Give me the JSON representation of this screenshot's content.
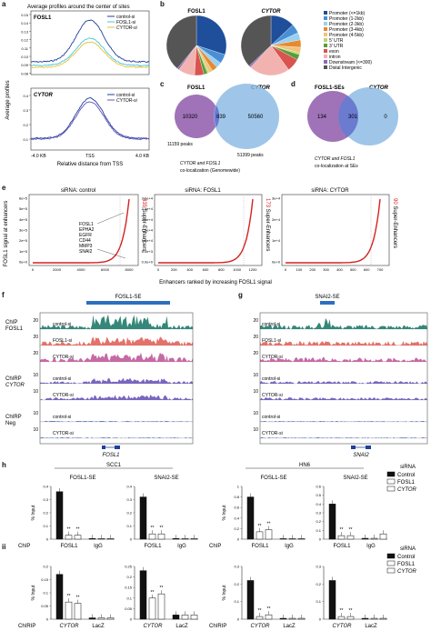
{
  "panels": {
    "a": "a",
    "b": "b",
    "c": "c",
    "d": "d",
    "e": "e",
    "f": "f",
    "g": "g",
    "h_i": "h",
    "h_ii": "ii"
  },
  "panel_a": {
    "title": "Average profiles around the center of sites",
    "ylabel": "Average profiles",
    "xlabel": "Relative distance from TSS",
    "top": {
      "name": "FOSL1",
      "legend": [
        "control-si",
        "FOSL1-si",
        "CYTOR-si"
      ],
      "yticks": [
        "0.15",
        "0.14",
        "0.13",
        "0.12",
        "0.11",
        "0.10",
        "0.09",
        "0.08"
      ]
    },
    "bottom": {
      "name": "CYTOR",
      "legend": [
        "control-si",
        "CYTOR-si"
      ],
      "yticks": [
        "0.4",
        "0.3",
        "0.2",
        "0.1"
      ]
    },
    "xticks": [
      "-4.0 KB",
      "TSS",
      "4.0 KB"
    ],
    "colors": [
      "#1f3f9a",
      "#47c7d8",
      "#e8c23a"
    ]
  },
  "panel_b": {
    "pies": [
      {
        "title": "FOSL1"
      },
      {
        "title": "CYTOR"
      }
    ],
    "legend": [
      {
        "label": "Promoter (<=1kb)",
        "color": "#1f4e9a"
      },
      {
        "label": "Promoter (1-2kb)",
        "color": "#4a8fd6"
      },
      {
        "label": "Promoter (2-3kb)",
        "color": "#9ad0f0"
      },
      {
        "label": "Promoter (3-4kb)",
        "color": "#e48b2f"
      },
      {
        "label": "Promoter (4-5kb)",
        "color": "#f3c27a"
      },
      {
        "label": "5' UTR",
        "color": "#b7d96a"
      },
      {
        "label": "3' UTR",
        "color": "#5a9e3a"
      },
      {
        "label": "exon",
        "color": "#d9534f"
      },
      {
        "label": "intron",
        "color": "#f2b2b0"
      },
      {
        "label": "Downstream (<=300)",
        "color": "#8a6ab8"
      },
      {
        "label": "Distal Intergenic",
        "color": "#555555"
      }
    ]
  },
  "panel_c": {
    "left_title": "FOSL1",
    "right_title": "CYTOR",
    "left_only": "10320",
    "overlap": "839",
    "right_only": "50560",
    "left_peaks": "11159 peaks",
    "right_peaks": "51399 peaks",
    "caption_1": "CYTOR and FOSL1",
    "caption_2": "co-localization (Genomewide)"
  },
  "panel_d": {
    "left_title": "FOSL1-SEs",
    "right_title": "CYTOR",
    "left_only": "134",
    "overlap": "301",
    "right_only": "0",
    "caption_1": "CYTOR and FOSL1",
    "caption_2": "co-localization at SEs"
  },
  "panel_e": {
    "ylabel": "FOSL1 signal at enhancers",
    "xlabel": "Enhancers ranked by increasing FOSL1 signal",
    "plots": [
      {
        "title": "siRNA: control",
        "count": "435",
        "se_label": "Super-Enhancers",
        "genes": [
          "FOSL1",
          "EPHA2",
          "EGFR",
          "CD44",
          "MMP3",
          "SNAI2"
        ],
        "yticks": [
          "6e+5",
          "5e+5",
          "4e+5",
          "3e+5",
          "2e+5",
          "1e+5",
          "0e+0"
        ],
        "xticks": [
          "0",
          "2000",
          "4000",
          "6000",
          "8000"
        ]
      },
      {
        "title": "siRNA: FOSL1",
        "count": "173",
        "se_label": "Super-Enhancers",
        "yticks": [
          "3.0e+4",
          "2.5e+4",
          "2.0e+4",
          "1.5e+4",
          "1.0e+4",
          "5.0e+3",
          "0.0e+0"
        ],
        "xticks": [
          "0",
          "200",
          "400",
          "600",
          "800",
          "1000",
          "1200"
        ]
      },
      {
        "title": "siRNA: CYTOR",
        "count": "90",
        "se_label": "Super-Enhancers",
        "yticks": [
          "3e+4",
          "2e+4",
          "1e+4",
          "0e+0"
        ],
        "xticks": [
          "0",
          "100",
          "200",
          "300",
          "400",
          "500",
          "600",
          "700"
        ]
      }
    ]
  },
  "panel_f": {
    "se": "FOSL1-SE",
    "gene": "FOSL1",
    "groups": [
      "ChIP\nFOSL1",
      "ChIRP\nCYTOR",
      "ChIRP\nNeg"
    ],
    "tracks": [
      {
        "label": "control-si",
        "scale": "20",
        "color": "#1e7a6a"
      },
      {
        "label": "FOSL1-si",
        "scale": "20",
        "color": "#e0635a"
      },
      {
        "label": "CYTOR-si",
        "scale": "20",
        "color": "#c05a9a"
      },
      {
        "label": "control-si",
        "scale": "10",
        "color": "#6a55b8"
      },
      {
        "label": "CYTOR-si",
        "scale": "10",
        "color": "#6a55b8"
      },
      {
        "label": "control-si",
        "scale": "10",
        "color": "#1f3f9a"
      },
      {
        "label": "CYTOR-si",
        "scale": "10",
        "color": "#1f3f9a"
      }
    ]
  },
  "panel_g": {
    "se": "SNAI2-SE",
    "gene": "SNAI2",
    "tracks_scale": [
      "20",
      "20",
      "20",
      "10",
      "10",
      "10",
      "10"
    ]
  },
  "panel_h": {
    "cell_1": "SCC1",
    "cell_2": "HN6",
    "sirna_title": "siRNA",
    "legend": [
      "Control",
      "FOSL1",
      "CYTOR"
    ],
    "chip_row": {
      "ylabel": "% Input",
      "rowlabel": "ChIP",
      "x1": "FOSL1",
      "x2": "IgG"
    },
    "chirp_row": {
      "ylabel": "% Input",
      "rowlabel": "ChIRIP",
      "x1": "CYTOR",
      "x2": "LacZ"
    },
    "sub_titles": [
      "FOSL1-SE",
      "SNAI2-SE",
      "FOSL1-SE",
      "SNAI2-SE"
    ],
    "sig": "**",
    "chip_yticks": [
      [
        "0.4",
        "0.3",
        "0.2",
        "0.1",
        "0"
      ],
      [
        "0.4",
        "0.3",
        "0.2",
        "0.1",
        "0"
      ],
      [
        "1",
        "0.8",
        "0.6",
        "0.4",
        "0.2",
        "0"
      ],
      [
        "0.6",
        "0.5",
        "0.4",
        "0.3",
        "0.2",
        "0.1",
        "0"
      ]
    ],
    "chirp_yticks": [
      [
        "0.2",
        "0.15",
        "0.1",
        "0.05",
        "0"
      ],
      [
        "0.25",
        "0.2",
        "0.15",
        "0.1",
        "0.05",
        "0"
      ],
      [
        "0.3",
        "0.2",
        "0.1",
        "0"
      ],
      [
        "0.3",
        "0.2",
        "0.1",
        "0"
      ]
    ],
    "chip_values": [
      [
        0.36,
        0.03,
        0.03,
        0.005,
        0.005,
        0.005
      ],
      [
        0.32,
        0.04,
        0.04,
        0.005,
        0.005,
        0.005
      ],
      [
        0.8,
        0.14,
        0.18,
        0.01,
        0.01,
        0.01
      ],
      [
        0.4,
        0.04,
        0.04,
        0.01,
        0.01,
        0.06
      ]
    ],
    "chirp_values": [
      [
        0.17,
        0.065,
        0.06,
        0.005,
        0.005,
        0.005
      ],
      [
        0.23,
        0.1,
        0.12,
        0.02,
        0.02,
        0.02
      ],
      [
        0.22,
        0.015,
        0.025,
        0.005,
        0.005,
        0.005
      ],
      [
        0.22,
        0.015,
        0.015,
        0.005,
        0.005,
        0.005
      ]
    ]
  }
}
